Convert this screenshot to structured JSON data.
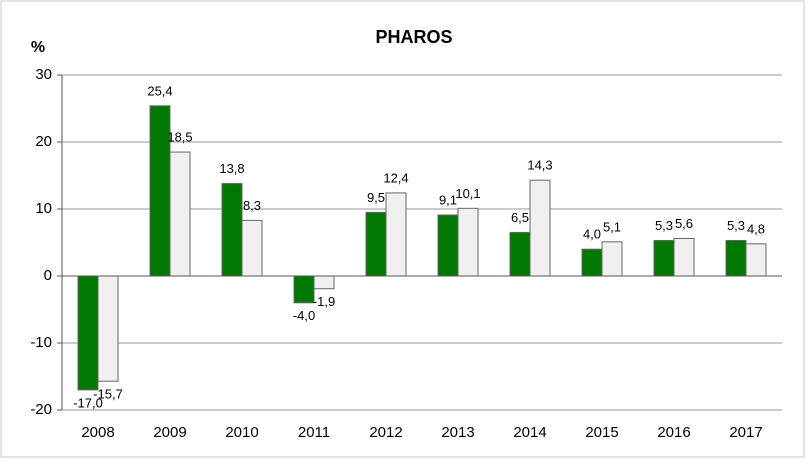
{
  "chart_data": {
    "type": "bar",
    "title": "PHAROS",
    "y_label": "%",
    "categories": [
      "2008",
      "2009",
      "2010",
      "2011",
      "2012",
      "2013",
      "2014",
      "2015",
      "2016",
      "2017"
    ],
    "series": [
      {
        "color": "#007800",
        "values": [
          -17.0,
          25.4,
          13.8,
          -4.0,
          9.5,
          9.1,
          6.5,
          4.0,
          5.3,
          5.3
        ],
        "value_labels": [
          "-17,0",
          "25,4",
          "13,8",
          "-4,0",
          "9,5",
          "9,1",
          "6,5",
          "4,0",
          "5,3",
          "5,3"
        ]
      },
      {
        "color": "#f0f0f0",
        "values": [
          -15.7,
          18.5,
          8.3,
          -1.9,
          12.4,
          10.1,
          14.3,
          5.1,
          5.6,
          4.8
        ],
        "value_labels": [
          "-15,7",
          "18,5",
          "8,3",
          "-1,9",
          "12,4",
          "10,1",
          "14,3",
          "5,1",
          "5,6",
          "4,8"
        ]
      }
    ],
    "ylim": [
      -20,
      30
    ],
    "yticks": [
      -20,
      -10,
      0,
      10,
      20,
      30
    ],
    "grid": true
  }
}
